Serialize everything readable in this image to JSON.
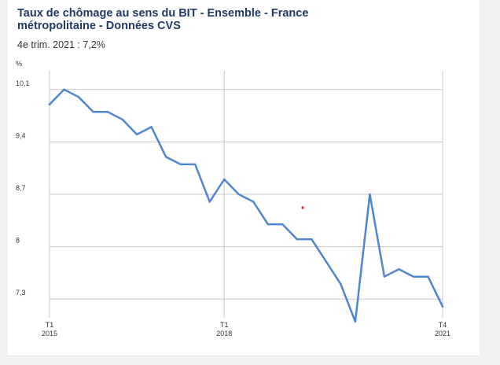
{
  "header": {
    "title": "Taux de chômage au sens du BIT - Ensemble - France métropolitaine - Données CVS",
    "latest": "4e trim. 2021 : 7,2%"
  },
  "colors": {
    "line": "#4f86d2",
    "title": "#1f3b66",
    "grid": "#c8c8c8",
    "dot": "#d42020"
  },
  "chart_data": {
    "type": "line",
    "title": "Taux de chômage au sens du BIT - Ensemble - France métropolitaine - Données CVS",
    "ylabel": "%",
    "xlabel": "",
    "ylim": [
      7.05,
      10.35
    ],
    "y_ticks": [
      {
        "value": 10.1,
        "label": "10,1"
      },
      {
        "value": 9.4,
        "label": "9,4"
      },
      {
        "value": 8.7,
        "label": "8,7"
      },
      {
        "value": 8.0,
        "label": "8"
      },
      {
        "value": 7.3,
        "label": "7,3"
      }
    ],
    "x_ticks": [
      {
        "index": 0,
        "line1": "T1",
        "line2": "2015"
      },
      {
        "index": 12,
        "line1": "T1",
        "line2": "2018"
      },
      {
        "index": 27,
        "line1": "T4",
        "line2": "2021"
      }
    ],
    "x": [
      "T1 2015",
      "T2 2015",
      "T3 2015",
      "T4 2015",
      "T1 2016",
      "T2 2016",
      "T3 2016",
      "T4 2016",
      "T1 2017",
      "T2 2017",
      "T3 2017",
      "T4 2017",
      "T1 2018",
      "T2 2018",
      "T3 2018",
      "T4 2018",
      "T1 2019",
      "T2 2019",
      "T3 2019",
      "T4 2019",
      "T1 2020",
      "T2 2020",
      "T3 2020",
      "T4 2020",
      "T1 2021",
      "T2 2021",
      "T3 2021",
      "T4 2021"
    ],
    "series": [
      {
        "values": [
          9.9,
          10.1,
          10.0,
          9.8,
          9.8,
          9.7,
          9.5,
          9.6,
          9.2,
          9.1,
          9.1,
          8.6,
          8.9,
          8.7,
          8.6,
          8.3,
          8.3,
          8.1,
          8.1,
          7.8,
          7.5,
          7.0,
          8.7,
          7.6,
          7.7,
          7.6,
          7.6,
          7.2
        ]
      }
    ],
    "grid": true,
    "legend": "none"
  }
}
